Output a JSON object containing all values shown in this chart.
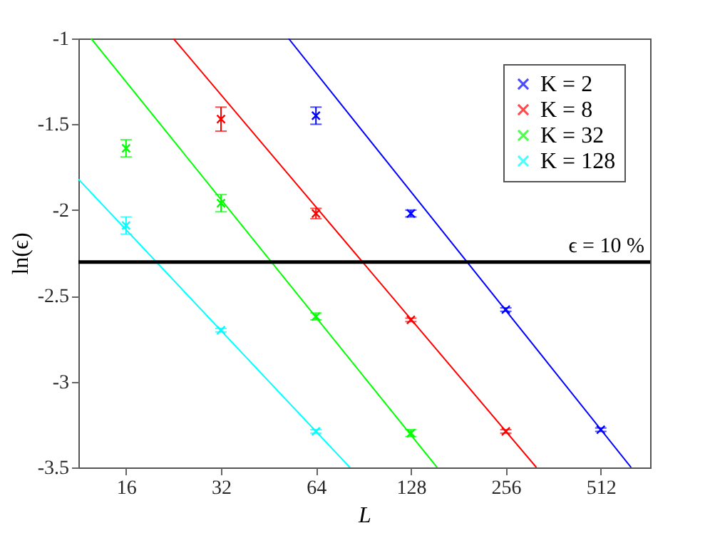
{
  "chart_data": {
    "type": "scatter",
    "xlabel": "L",
    "ylabel": "ln(ϵ)",
    "log": "x",
    "xlim": [
      11.3,
      734
    ],
    "xticks": [
      16,
      32,
      64,
      128,
      256,
      512
    ],
    "ylim": [
      -3.5,
      -1
    ],
    "yticks": [
      -3.5,
      -3,
      -2.5,
      -2,
      -1.5,
      -1
    ],
    "grid": false,
    "legend": "top right",
    "series": [
      {
        "name": "K = 2",
        "marker": "cross",
        "color": "#0000ff",
        "x": [
          64,
          128,
          256,
          512
        ],
        "values": [
          -1.45,
          -2.02,
          -2.58,
          -3.28
        ],
        "errors": [
          0.05,
          0.02,
          0.01,
          0.01
        ]
      },
      {
        "name": "K = 8",
        "marker": "cross",
        "color": "#ff0000",
        "x": [
          32,
          64,
          128,
          256
        ],
        "values": [
          -1.47,
          -2.02,
          -2.64,
          -3.29
        ],
        "errors": [
          0.07,
          0.03,
          0.01,
          0.01
        ]
      },
      {
        "name": "K = 32",
        "marker": "cross",
        "color": "#00ff00",
        "x": [
          16,
          32,
          64,
          128
        ],
        "values": [
          -1.64,
          -1.96,
          -2.62,
          -3.3
        ],
        "errors": [
          0.05,
          0.05,
          0.02,
          0.02
        ]
      },
      {
        "name": "K = 128",
        "marker": "cross",
        "color": "#00ffff",
        "x": [
          16,
          32,
          64
        ],
        "values": [
          -2.09,
          -2.7,
          -3.29
        ],
        "errors": [
          0.05,
          0.01,
          0.01
        ]
      },
      {
        "type": "line",
        "color": "#0000ff",
        "x": [
          52.4,
          639
        ],
        "values": [
          -1,
          -3.5
        ]
      },
      {
        "type": "line",
        "color": "#ff0000",
        "x": [
          22.6,
          320
        ],
        "values": [
          -1,
          -3.5
        ]
      },
      {
        "type": "line",
        "color": "#00ff00",
        "x": [
          12.4,
          155
        ],
        "values": [
          -1,
          -3.5
        ]
      },
      {
        "type": "line",
        "color": "#00ffff",
        "x": [
          11.3,
          82
        ],
        "values": [
          -1.82,
          -3.5
        ]
      }
    ],
    "ref_lines": [
      {
        "axis": "y",
        "value": -2.303,
        "color": "#000000"
      }
    ],
    "annotations": [
      "ϵ = 10 %"
    ]
  }
}
